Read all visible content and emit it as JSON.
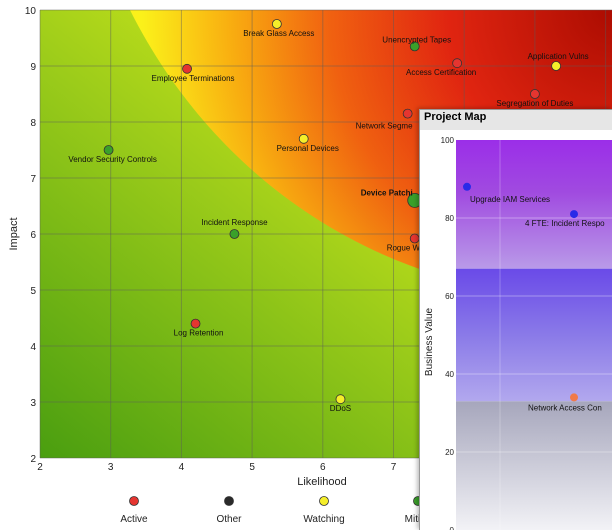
{
  "chart_data": [
    {
      "type": "scatter",
      "xlabel": "Likelihood",
      "ylabel": "Impact",
      "xlim": [
        2,
        10
      ],
      "ylim": [
        2,
        10
      ],
      "x_ticks": [
        2,
        3,
        4,
        5,
        6,
        7
      ],
      "y_ticks": [
        2,
        3,
        4,
        5,
        6,
        7,
        8,
        9,
        10
      ],
      "grid": true,
      "background": "heatmap green-yellow-red toward top-right",
      "legend_position": "bottom",
      "legend": [
        {
          "label": "Active",
          "color": "#e53530"
        },
        {
          "label": "Other",
          "color": "#2a2a2a"
        },
        {
          "label": "Watching",
          "color": "#f5ee2a"
        },
        {
          "label": "Mitiga",
          "color": "#3aa02a"
        }
      ],
      "points": [
        {
          "label": "Break Glass Access",
          "x": 5.35,
          "y": 9.75,
          "status": "Watching"
        },
        {
          "label": "Unencrypted Tapes",
          "x": 7.3,
          "y": 9.35,
          "status": "Mitigated"
        },
        {
          "label": "Employee Terminations",
          "x": 4.08,
          "y": 8.95,
          "status": "Active"
        },
        {
          "label": "Access Certification",
          "x": 7.9,
          "y": 9.05,
          "status": "Active"
        },
        {
          "label": "Application Vulns",
          "x": 9.3,
          "y": 9.0,
          "status": "Watching"
        },
        {
          "label": "Segregation of Duties",
          "x": 9.0,
          "y": 8.5,
          "status": "Active"
        },
        {
          "label": "Network Segme",
          "x": 7.2,
          "y": 8.15,
          "status": "Active"
        },
        {
          "label": "Vendor Security Controls",
          "x": 2.97,
          "y": 7.5,
          "status": "Mitigated"
        },
        {
          "label": "Personal Devices",
          "x": 5.73,
          "y": 7.7,
          "status": "Watching"
        },
        {
          "label": "Device Patchi",
          "x": 7.3,
          "y": 6.6,
          "status": "Mitigated"
        },
        {
          "label": "Incident Response",
          "x": 4.75,
          "y": 6.0,
          "status": "Mitigated"
        },
        {
          "label": "Rogue W",
          "x": 7.3,
          "y": 5.92,
          "status": "Active"
        },
        {
          "label": "Log Retention",
          "x": 4.2,
          "y": 4.4,
          "status": "Active"
        },
        {
          "label": "DDoS",
          "x": 6.25,
          "y": 3.05,
          "status": "Watching"
        }
      ]
    },
    {
      "type": "scatter",
      "title": "Project Map",
      "ylabel": "Business Value",
      "ylim": [
        0,
        100
      ],
      "y_ticks": [
        0,
        20,
        40,
        60,
        80,
        100
      ],
      "grid": true,
      "points": [
        {
          "label": "Upgrade IAM Services",
          "y": 88,
          "color": "#2a2ae8"
        },
        {
          "label": "4 FTE: Incident Respo",
          "y": 81,
          "color": "#2a2ae8"
        },
        {
          "label": "Network Access Con",
          "y": 34,
          "color": "#f07a4a"
        }
      ]
    }
  ]
}
